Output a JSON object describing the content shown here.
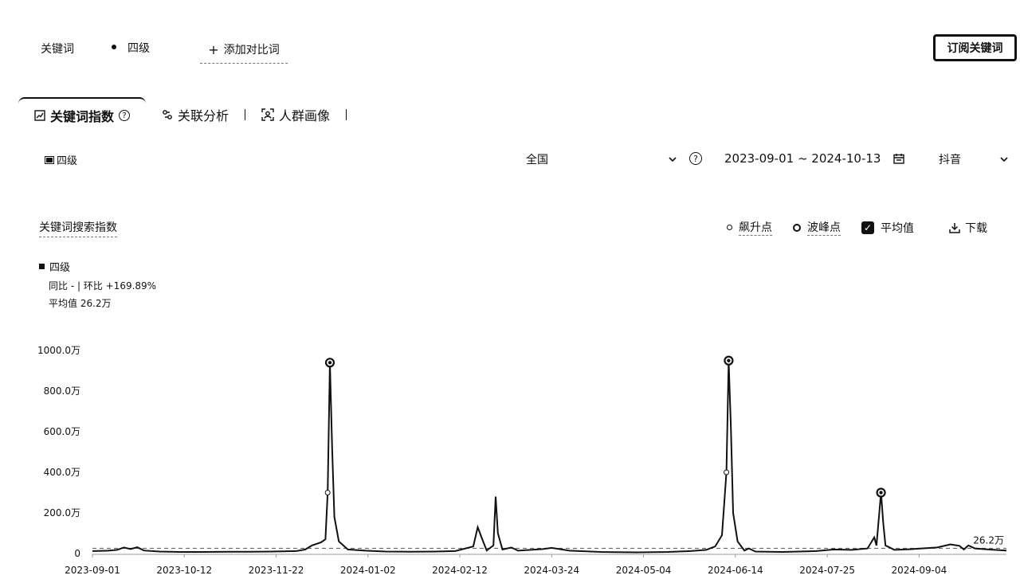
{
  "header": {
    "keyword_label": "关键词",
    "keyword_value": "四级",
    "add_compare_label": "添加对比词",
    "subscribe_label": "订阅关键词"
  },
  "tabs": [
    {
      "label": "关键词指数",
      "icon": "trend-chart-icon",
      "active": true
    },
    {
      "label": "关联分析",
      "icon": "link-icon",
      "active": false
    },
    {
      "label": "人群画像",
      "icon": "user-scan-icon",
      "active": false
    }
  ],
  "filters": {
    "series_chip": "四级",
    "region": "全国",
    "date_range": "2023-09-01 ~ 2024-10-13",
    "platform": "抖音"
  },
  "chart_header": {
    "title": "关键词搜索指数",
    "surge_label": "飙升点",
    "peak_label": "波峰点",
    "average_label": "平均值",
    "download_label": "下载"
  },
  "legend": {
    "series": "四级",
    "compare_text": "同比 - | 环比 +169.89%",
    "average_text": "平均值 26.2万"
  },
  "chart_data": {
    "type": "line",
    "series_name": "四级",
    "unit": "万",
    "ylim": [
      0,
      1000
    ],
    "y_ticks": [
      0,
      200,
      400,
      600,
      800,
      1000
    ],
    "y_tick_labels": [
      "0",
      "200.0万",
      "400.0万",
      "600.0万",
      "800.0万",
      "1000.0万"
    ],
    "x_tick_labels": [
      "2023-09-01",
      "2023-10-12",
      "2023-11-22",
      "2024-01-02",
      "2024-02-12",
      "2024-03-24",
      "2024-05-04",
      "2024-06-14",
      "2024-07-25",
      "2024-09-04"
    ],
    "average": 26.2,
    "average_label": "26.2万",
    "grid": false,
    "x_start": "2023-09-01",
    "x_end": "2024-10-13",
    "points": [
      [
        "2023-09-01",
        12
      ],
      [
        "2023-09-08",
        14
      ],
      [
        "2023-09-12",
        18
      ],
      [
        "2023-09-15",
        30
      ],
      [
        "2023-09-18",
        22
      ],
      [
        "2023-09-21",
        31
      ],
      [
        "2023-09-24",
        15
      ],
      [
        "2023-10-01",
        10
      ],
      [
        "2023-10-10",
        8
      ],
      [
        "2023-10-20",
        8
      ],
      [
        "2023-11-01",
        9
      ],
      [
        "2023-11-10",
        9
      ],
      [
        "2023-11-20",
        10
      ],
      [
        "2023-12-01",
        12
      ],
      [
        "2023-12-05",
        20
      ],
      [
        "2023-12-08",
        40
      ],
      [
        "2023-12-12",
        55
      ],
      [
        "2023-12-14",
        70
      ],
      [
        "2023-12-15",
        300
      ],
      [
        "2023-12-16",
        940
      ],
      [
        "2023-12-17",
        520
      ],
      [
        "2023-12-18",
        180
      ],
      [
        "2023-12-20",
        60
      ],
      [
        "2023-12-24",
        20
      ],
      [
        "2024-01-01",
        14
      ],
      [
        "2024-01-10",
        10
      ],
      [
        "2024-01-20",
        9
      ],
      [
        "2024-02-01",
        10
      ],
      [
        "2024-02-10",
        12
      ],
      [
        "2024-02-18",
        35
      ],
      [
        "2024-02-20",
        130
      ],
      [
        "2024-02-22",
        70
      ],
      [
        "2024-02-24",
        15
      ],
      [
        "2024-02-27",
        40
      ],
      [
        "2024-02-28",
        280
      ],
      [
        "2024-02-29",
        100
      ],
      [
        "2024-03-02",
        20
      ],
      [
        "2024-03-06",
        30
      ],
      [
        "2024-03-09",
        14
      ],
      [
        "2024-03-20",
        22
      ],
      [
        "2024-03-24",
        28
      ],
      [
        "2024-04-01",
        14
      ],
      [
        "2024-04-15",
        8
      ],
      [
        "2024-05-01",
        6
      ],
      [
        "2024-05-15",
        8
      ],
      [
        "2024-05-25",
        12
      ],
      [
        "2024-06-01",
        18
      ],
      [
        "2024-06-05",
        35
      ],
      [
        "2024-06-08",
        90
      ],
      [
        "2024-06-10",
        400
      ],
      [
        "2024-06-11",
        950
      ],
      [
        "2024-06-12",
        620
      ],
      [
        "2024-06-13",
        200
      ],
      [
        "2024-06-15",
        60
      ],
      [
        "2024-06-18",
        15
      ],
      [
        "2024-06-20",
        25
      ],
      [
        "2024-06-23",
        10
      ],
      [
        "2024-07-05",
        8
      ],
      [
        "2024-07-20",
        12
      ],
      [
        "2024-07-28",
        20
      ],
      [
        "2024-08-05",
        18
      ],
      [
        "2024-08-12",
        25
      ],
      [
        "2024-08-15",
        80
      ],
      [
        "2024-08-16",
        40
      ],
      [
        "2024-08-18",
        300
      ],
      [
        "2024-08-19",
        150
      ],
      [
        "2024-08-20",
        40
      ],
      [
        "2024-08-24",
        18
      ],
      [
        "2024-09-01",
        22
      ],
      [
        "2024-09-05",
        25
      ],
      [
        "2024-09-12",
        30
      ],
      [
        "2024-09-18",
        45
      ],
      [
        "2024-09-22",
        38
      ],
      [
        "2024-09-24",
        20
      ],
      [
        "2024-09-26",
        40
      ],
      [
        "2024-09-29",
        25
      ],
      [
        "2024-10-05",
        20
      ],
      [
        "2024-10-13",
        15
      ]
    ],
    "peak_points": [
      [
        "2023-12-16",
        940
      ],
      [
        "2024-06-11",
        950
      ],
      [
        "2024-08-18",
        300
      ]
    ],
    "surge_points": [
      [
        "2023-12-15",
        300
      ],
      [
        "2024-06-10",
        400
      ]
    ]
  }
}
